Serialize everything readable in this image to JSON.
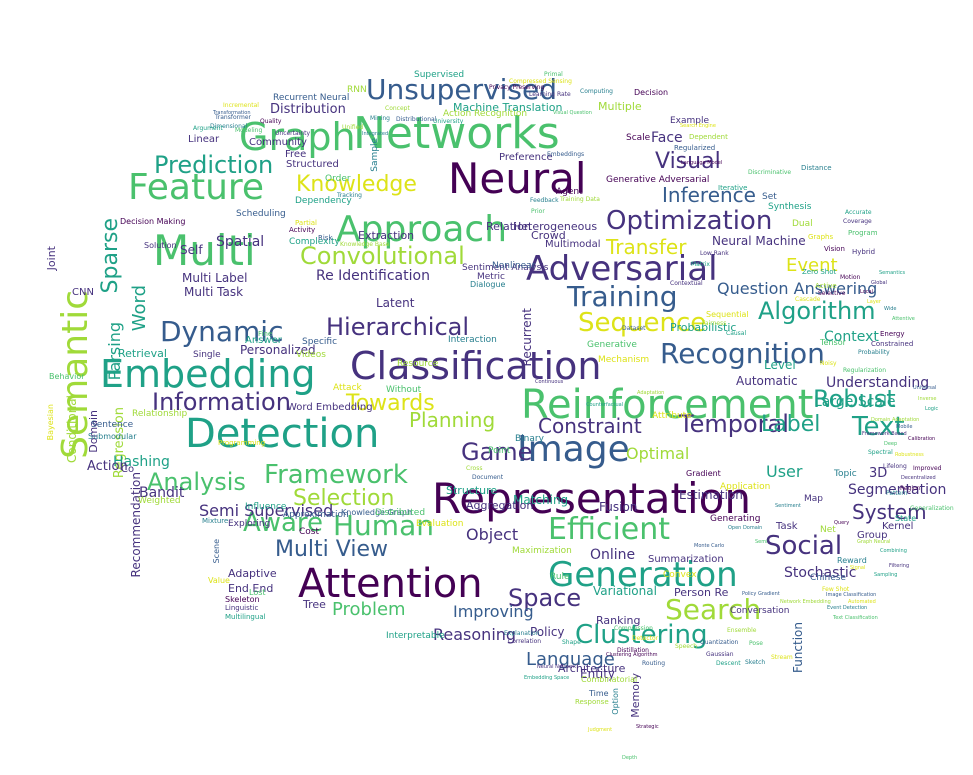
{
  "palette": {
    "dark_purple": "#440154",
    "indigo": "#46327e",
    "blue": "#365c8d",
    "teal": "#277f8e",
    "green_teal": "#1fa187",
    "green": "#4ac16d",
    "lime": "#a0da39",
    "yellow": "#dde318"
  },
  "words": [
    "Representation",
    "Networks",
    "Neural",
    "Attention",
    "Classification",
    "Multi",
    "Reinforcement",
    "Detection",
    "Embedding",
    "Graph",
    "Image",
    "Approach",
    "Adversarial",
    "Generation",
    "Feature",
    "Semantic",
    "Recognition",
    "Optimization",
    "Unsupervised",
    "Training",
    "Efficient",
    "Search",
    "Clustering",
    "Human",
    "Hierarchical",
    "Convolutional",
    "Dynamic",
    "Framework",
    "Algorithm",
    "Text",
    "Social",
    "Aware",
    "Sequence",
    "Knowledge",
    "Game",
    "Temporal",
    "Prediction",
    "Analysis",
    "Information",
    "Robust",
    "Towards",
    "Selection",
    "Multi View",
    "Space",
    "Constraint",
    "Visual",
    "Inference",
    "Word",
    "Planning",
    "Sparse",
    "Transfer",
    "Label",
    "System",
    "Language",
    "Problem",
    "Question Answering",
    "Event",
    "Semi Supervised",
    "Recommendation",
    "Optimal",
    "Parsing",
    "Regression",
    "Conditional",
    "Reasoning",
    "Improving",
    "Object",
    "Online",
    "Stochastic",
    "Segmentation",
    "Large Scale",
    "Understanding",
    "Context",
    "User",
    "Neural Machine",
    "Re Identification",
    "Personalized",
    "Distribution",
    "Machine Translation",
    "Bandit",
    "Recurrent",
    "Multi Label",
    "Multi Task",
    "Spatial",
    "Self",
    "Retrieval",
    "Estimation",
    "Fusion",
    "Latent",
    "Face",
    "Extraction",
    "Heterogeneous",
    "Crowd",
    "Multimodal",
    "Relation",
    "Hashing",
    "Action",
    "Automatic",
    "Level",
    "Domain",
    "Joint",
    "Function",
    "Memory",
    "Entity",
    "Ranking",
    "Policy",
    "Architecture",
    "Variational",
    "Person Re",
    "Tree",
    "End End",
    "Adaptive",
    "Structure",
    "Matching",
    "Aggregation",
    "Summarization",
    "Group",
    "Kernel",
    "3D",
    "Task",
    "Generative Adversarial",
    "Sentiment Analysis",
    "Word Embedding",
    "Relationship",
    "Knowledge Graph",
    "Probabilistic",
    "Generative",
    "Mechanism",
    "Scale",
    "Example",
    "Multiple",
    "Action Recognition",
    "Recurrent Neural",
    "Community",
    "Linear",
    "Structured",
    "Free",
    "Preference",
    "Dependency",
    "Supervised",
    "Sentence",
    "Submodular",
    "Behavior",
    "Bayesian",
    "CNN",
    "Single",
    "Interpretable",
    "Combinatorial",
    "Time",
    "Option",
    "Rule",
    "Convex",
    "Cost",
    "Exploring",
    "Influence",
    "Weighted",
    "Approximation",
    "Binary",
    "Point",
    "Attribute",
    "Gradient",
    "Map",
    "Synthesis",
    "Dual",
    "Set",
    "Topic",
    "Tensor",
    "Sequential",
    "Agent",
    "Metric",
    "Answer",
    "Resource",
    "Specific",
    "Interaction",
    "Distributed",
    "Evaluation",
    "Decision Making",
    "Solution",
    "Complexity",
    "Maximization",
    "Scheduling",
    "Sample",
    "Order",
    "Application",
    "Generating",
    "Conversation",
    "Co",
    "Videos",
    "Nonlinear",
    "Dialogue",
    "Without",
    "Attack",
    "Decision",
    "RNN",
    "State",
    "Net",
    "Chinese",
    "Reward",
    "Lost",
    "Value",
    "Skeleton",
    "Linguistic",
    "Multilingual",
    "Response",
    "Scene",
    "Mixture",
    "Fine",
    "Programming",
    "Energy",
    "Constrained",
    "Iterative",
    "Dependent",
    "Regularized",
    "Distance",
    "Program",
    "Graphs",
    "Vision",
    "Hybrid",
    "Zero Shot",
    "Active",
    "Transformer",
    "Dimensional",
    "Modeling",
    "Incremental",
    "Quality",
    "Uncertainty",
    "Argument",
    "Knowledge Base",
    "Risk",
    "Tracking",
    "Discriminative",
    "Partial",
    "Activity",
    "Coverage",
    "Accurate",
    "Training Data",
    "Embeddings",
    "Probability",
    "Regularization",
    "Noisy",
    "Motion",
    "Low Rank",
    "Matrix",
    "Cross",
    "Document",
    "Feedback",
    "Prior",
    "Cascade",
    "Selective",
    "Contextual",
    "Causal",
    "Fairness",
    "Dataset",
    "Explanation",
    "Compression",
    "Detector",
    "Distillation",
    "Gaussian",
    "Descent",
    "Ensemble",
    "Quantization",
    "Sketch",
    "Pose",
    "Stream",
    "Clustering Algorithm",
    "Correlation",
    "Shape",
    "Speech",
    "Routing",
    "Pattern",
    "Generalization",
    "Few Shot",
    "Region",
    "Lifelong",
    "Spectral",
    "Unified",
    "Transformation",
    "Computing",
    "Primal",
    "Compressed Sensing",
    "Privacy Preserving",
    "Learning Rate",
    "University",
    "Concept",
    "Distributional",
    "Mining",
    "Depth",
    "Judgment",
    "Strategic",
    "Neural Network",
    "Embedding Space",
    "Domain Adaptation",
    "Mobile",
    "Integrated",
    "Visual Question",
    "Search Engine",
    "Language Model",
    "Continuous",
    "Counterfactual",
    "Adaptation",
    "Monte Carlo",
    "Open Domain",
    "Semi",
    "Automated",
    "Improved",
    "Decentralized",
    "Combining",
    "Graph Neural",
    "Image Classification",
    "Event Detection",
    "Text Classification",
    "Signal",
    "Query",
    "Filtering",
    "Sampling",
    "Network Embedding",
    "Policy Gradient",
    "Sentiment",
    "Deep",
    "Robustness",
    "Calibration",
    "Framework Based",
    "Logic",
    "Inverse",
    "Universal",
    "Wide",
    "Attentive",
    "Layer",
    "Local",
    "Global",
    "Semantics"
  ]
}
